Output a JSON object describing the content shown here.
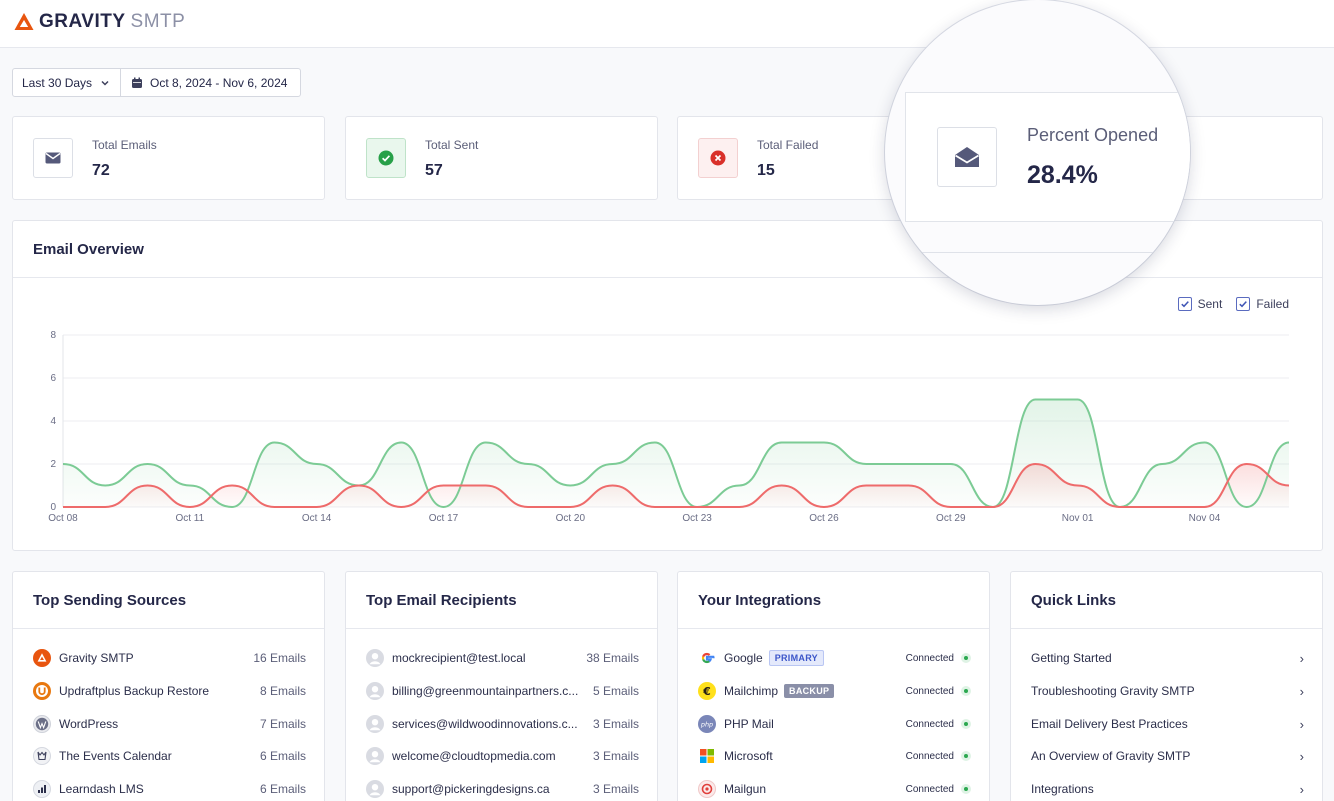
{
  "app": {
    "brand_strong": "GRAVITY",
    "brand_light": "SMTP",
    "accent_color": "#e8550f"
  },
  "filter": {
    "range_label": "Last 30 Days",
    "date_range": "Oct 8, 2024 - Nov 6, 2024"
  },
  "stats": {
    "total_emails": {
      "label": "Total Emails",
      "value": "72",
      "icon": "envelope-icon"
    },
    "total_sent": {
      "label": "Total Sent",
      "value": "57",
      "icon": "check-circle-icon"
    },
    "total_failed": {
      "label": "Total Failed",
      "value": "15",
      "icon": "x-circle-icon"
    },
    "percent_opened": {
      "label": "Percent Opened",
      "value": "28.4%",
      "icon": "envelope-open-icon"
    }
  },
  "overview": {
    "title": "Email Overview",
    "legend": {
      "sent": "Sent",
      "failed": "Failed"
    }
  },
  "chart_data": {
    "type": "area",
    "title": "",
    "xlabel": "",
    "ylabel": "",
    "ylim": [
      0,
      8
    ],
    "yticks": [
      "0",
      "2",
      "4",
      "6",
      "8"
    ],
    "x": [
      "Oct 08",
      "Oct 09",
      "Oct 10",
      "Oct 11",
      "Oct 12",
      "Oct 13",
      "Oct 14",
      "Oct 15",
      "Oct 16",
      "Oct 17",
      "Oct 18",
      "Oct 19",
      "Oct 20",
      "Oct 21",
      "Oct 22",
      "Oct 23",
      "Oct 24",
      "Oct 25",
      "Oct 26",
      "Oct 27",
      "Oct 28",
      "Oct 29",
      "Oct 30",
      "Oct 31",
      "Nov 01",
      "Nov 02",
      "Nov 03",
      "Nov 04",
      "Nov 05",
      "Nov 06"
    ],
    "xtick_labels": [
      "Oct 08",
      "Oct 11",
      "Oct 14",
      "Oct 17",
      "Oct 20",
      "Oct 23",
      "Oct 26",
      "Oct 29",
      "Nov 01",
      "Nov 04"
    ],
    "xtick_every": 3,
    "grid": true,
    "legend_position": "top-right",
    "series": [
      {
        "name": "Sent",
        "color": "#7ccb95",
        "values": [
          2,
          1,
          2,
          1,
          0,
          3,
          2,
          1,
          3,
          0,
          3,
          2,
          1,
          2,
          3,
          0,
          1,
          3,
          3,
          2,
          2,
          2,
          0,
          5,
          5,
          0,
          2,
          3,
          0,
          3
        ]
      },
      {
        "name": "Failed",
        "color": "#ee6b6b",
        "values": [
          0,
          0,
          1,
          0,
          1,
          0,
          0,
          1,
          0,
          1,
          1,
          0,
          0,
          1,
          0,
          0,
          0,
          1,
          0,
          1,
          1,
          0,
          0,
          2,
          1,
          0,
          0,
          0,
          2,
          1
        ]
      }
    ]
  },
  "sources": {
    "title": "Top Sending Sources",
    "items": [
      {
        "name": "Gravity SMTP",
        "count": "16 Emails",
        "icon": "gravity-smtp-icon"
      },
      {
        "name": "Updraftplus Backup Restore",
        "count": "8 Emails",
        "icon": "updraftplus-icon"
      },
      {
        "name": "WordPress",
        "count": "7 Emails",
        "icon": "wordpress-icon"
      },
      {
        "name": "The Events Calendar",
        "count": "6 Emails",
        "icon": "events-calendar-icon"
      },
      {
        "name": "Learndash LMS",
        "count": "6 Emails",
        "icon": "learndash-icon"
      }
    ]
  },
  "recipients": {
    "title": "Top Email Recipients",
    "items": [
      {
        "email": "mockrecipient@test.local",
        "count": "38 Emails"
      },
      {
        "email": "billing@greenmountainpartners.c...",
        "count": "5 Emails"
      },
      {
        "email": "services@wildwoodinnovations.c...",
        "count": "3 Emails"
      },
      {
        "email": "welcome@cloudtopmedia.com",
        "count": "3 Emails"
      },
      {
        "email": "support@pickeringdesigns.ca",
        "count": "3 Emails"
      }
    ]
  },
  "integrations": {
    "title": "Your Integrations",
    "items": [
      {
        "name": "Google",
        "badge": "PRIMARY",
        "status": "Connected",
        "icon": "google-icon"
      },
      {
        "name": "Mailchimp",
        "badge": "BACKUP",
        "status": "Connected",
        "icon": "mailchimp-icon"
      },
      {
        "name": "PHP Mail",
        "badge": "",
        "status": "Connected",
        "icon": "php-icon"
      },
      {
        "name": "Microsoft",
        "badge": "",
        "status": "Connected",
        "icon": "microsoft-icon"
      },
      {
        "name": "Mailgun",
        "badge": "",
        "status": "Connected",
        "icon": "mailgun-icon"
      }
    ]
  },
  "quick_links": {
    "title": "Quick Links",
    "items": [
      {
        "label": "Getting Started"
      },
      {
        "label": "Troubleshooting Gravity SMTP"
      },
      {
        "label": "Email Delivery Best Practices"
      },
      {
        "label": "An Overview of Gravity SMTP"
      },
      {
        "label": "Integrations"
      }
    ]
  }
}
